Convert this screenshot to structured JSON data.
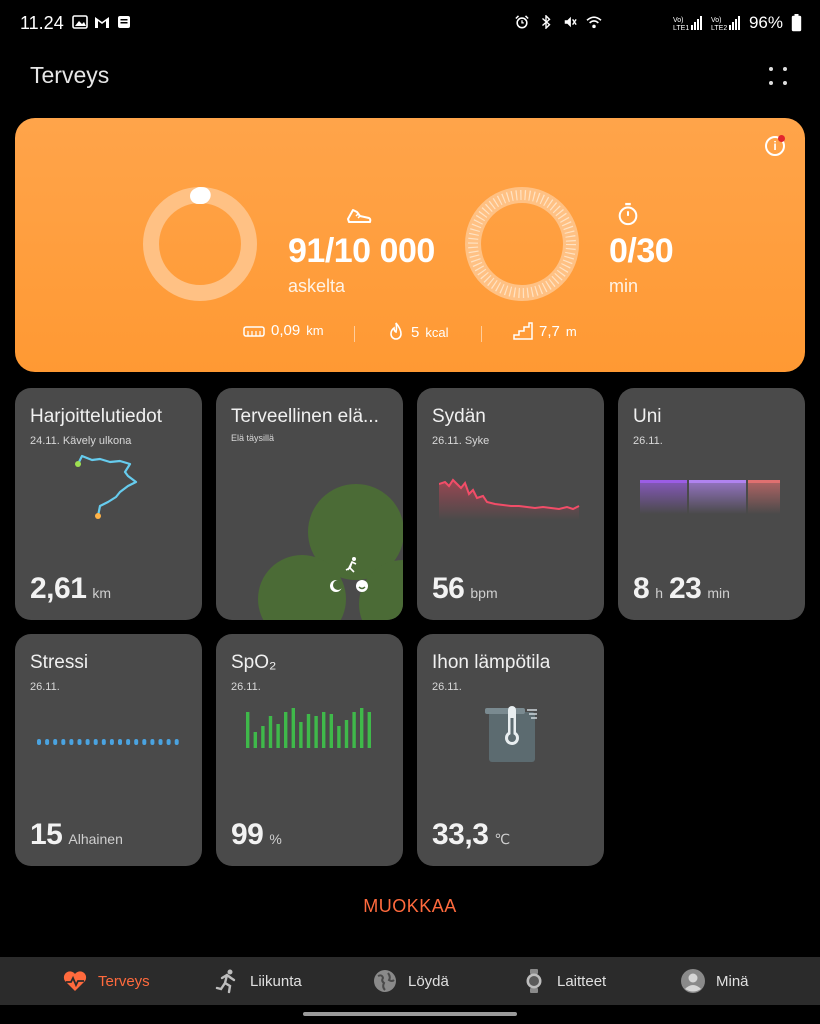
{
  "status_bar": {
    "time": "11.24",
    "battery": "96%",
    "sim1": "VoLTE1",
    "sim2": "VoLTE2"
  },
  "header": {
    "title": "Terveys"
  },
  "hero": {
    "steps_value": "91/10 000",
    "steps_unit": "askelta",
    "steps_progress": 0.009,
    "active_value": "0/30",
    "active_unit": "min",
    "active_progress": 0,
    "distance": "0,09",
    "distance_unit": "km",
    "calories": "5",
    "calories_unit": "kcal",
    "floors": "7,7",
    "floors_unit": "m",
    "accent": "#ff9933"
  },
  "cards": {
    "exercise": {
      "title": "Harjoittelutiedot",
      "sub": "24.11. Kävely ulkona",
      "value": "2,61",
      "unit": "km"
    },
    "healthy": {
      "title": "Terveellinen elä...",
      "sub": "Elä täysillä"
    },
    "heart": {
      "title": "Sydän",
      "sub": "26.11. Syke",
      "value": "56",
      "unit": "bpm"
    },
    "sleep": {
      "title": "Uni",
      "sub": "26.11.",
      "hours": "8",
      "h_unit": "h",
      "minutes": "23",
      "m_unit": "min"
    },
    "stress": {
      "title": "Stressi",
      "sub": "26.11.",
      "value": "15",
      "unit": "Alhainen"
    },
    "spo2": {
      "title": "SpO₂",
      "sub": "26.11.",
      "value": "99",
      "unit": "%"
    },
    "skin_temp": {
      "title": "Ihon lämpötila",
      "sub": "26.11.",
      "value": "33,3",
      "unit": "℃"
    }
  },
  "edit_label": "MUOKKAA",
  "bottom_nav": {
    "items": [
      {
        "label": "Terveys",
        "icon": "heart-pulse-icon",
        "active": true
      },
      {
        "label": "Liikunta",
        "icon": "running-icon",
        "active": false
      },
      {
        "label": "Löydä",
        "icon": "globe-icon",
        "active": false
      },
      {
        "label": "Laitteet",
        "icon": "watch-icon",
        "active": false
      },
      {
        "label": "Minä",
        "icon": "person-icon",
        "active": false
      }
    ],
    "active_color": "#ff6a3d"
  }
}
